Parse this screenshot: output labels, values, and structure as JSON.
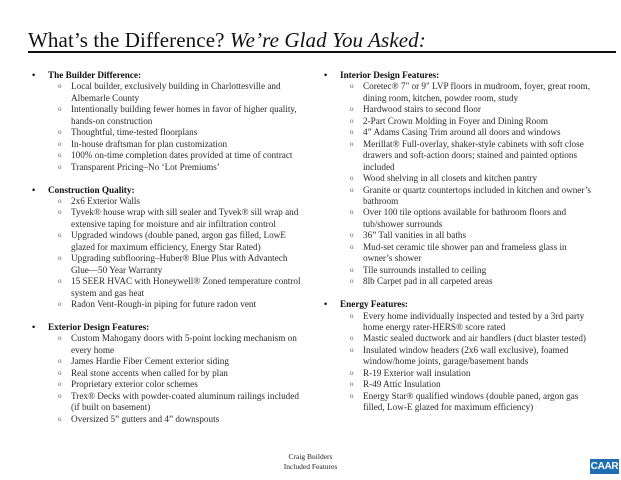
{
  "header": {
    "title_main": "What’s the Difference?",
    "title_italic": "We’re Glad You Asked:"
  },
  "left_sections": [
    {
      "heading": "The Builder Difference:",
      "items": [
        "Local builder, exclusively building in Charlottesville and Albemarle County",
        "Intentionally building fewer homes in favor of higher quality, hands-on construction",
        "Thoughtful, time-tested floorplans",
        "In-house draftsman for plan customization",
        "100% on-time completion dates provided at time of contract",
        "Transparent Pricing–No ‘Lot Premiums’"
      ]
    },
    {
      "heading": "Construction Quality:",
      "items": [
        "2x6 Exterior Walls",
        "Tyvek® house wrap with sill sealer and Tyvek® sill wrap and extensive taping for moisture and air infiltration control",
        "Upgraded windows (double paned, argon gas filled, LowE glazed for maximum efficiency, Energy Star Rated)",
        "Upgrading subflooring–Huber® Blue Plus with Advantech Glue—50 Year Warranty",
        "15 SEER HVAC with Honeywell® Zoned temperature control system and gas heat",
        "Radon Vent-Rough-in piping for future radon vent"
      ]
    },
    {
      "heading": "Exterior Design Features:",
      "items": [
        "Custom Mahogany doors with 5-point locking mechanism on every home",
        "James Hardie Fiber Cement exterior siding",
        "Real stone accents when called for by plan",
        "Proprietary exterior color schemes",
        "Trex® Decks with powder-coated aluminum railings included (if built on basement)",
        "Oversized 5” gutters and 4” downspouts"
      ]
    }
  ],
  "right_sections": [
    {
      "heading": "Interior Design Features:",
      "items": [
        "Coretec® 7\" or 9\" LVP floors in mudroom, foyer, great room, dining room, kitchen, powder room, study",
        "Hardwood stairs to second floor",
        "2-Part Crown Molding in Foyer and Dining Room",
        "4” Adams Casing Trim around all doors and windows",
        "Merillat® Full-overlay, shaker-style cabinets with soft close drawers and soft-action doors; stained and painted options included",
        "Wood shelving in all closets and kitchen pantry",
        "Granite or quartz countertops included in kitchen and owner’s bathroom",
        "Over 100 tile options available for bathroom floors and tub/shower surrounds",
        "36” Tall vanities in all baths",
        "Mud-set ceramic tile shower pan and frameless glass in owner’s shower",
        "Tile surrounds installed to ceiling",
        "8lb Carpet pad in all carpeted areas"
      ]
    },
    {
      "heading": "Energy Features:",
      "items": [
        "Every home individually inspected and tested by a 3rd party home energy rater-HERS® score rated",
        "Mastic sealed ductwork and air handlers (duct blaster tested)",
        "Insulated window headers (2x6 wall exclusive), foamed window/home joints, garage/basement bands",
        "R-19 Exterior wall insulation",
        "R-49 Attic Insulation",
        "Energy Star® qualified windows (double paned, argon gas filled, Low-E glazed for maximum efficiency)"
      ]
    }
  ],
  "footer": {
    "line1": "Craig Builders",
    "line2": "Included Features"
  },
  "logo": {
    "text": "CAAR",
    "color": "#1f6db3"
  }
}
